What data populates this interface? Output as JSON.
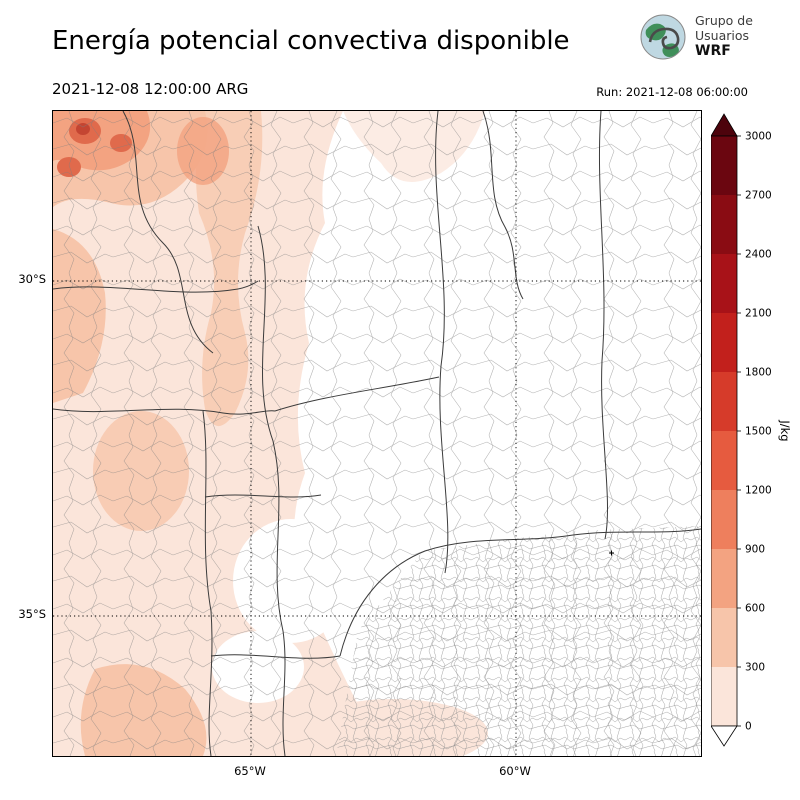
{
  "header": {
    "title": "Energía potencial convectiva disponible",
    "valid_time": "2021-12-08 12:00:00 ARG",
    "run_label": "Run: 2021-12-08 06:00:00",
    "logo": {
      "line1": "Grupo de",
      "line2": "Usuarios",
      "line3": "WRF"
    }
  },
  "map": {
    "lat_labels": [
      "30°S",
      "35°S"
    ],
    "lon_labels": [
      "65°W",
      "60°W"
    ]
  },
  "colorbar": {
    "unit": "J/kg",
    "tick_labels": [
      "3000",
      "2700",
      "2400",
      "2100",
      "1800",
      "1500",
      "1200",
      "900",
      "600",
      "300",
      "0"
    ],
    "segment_colors_top_to_bottom": [
      "#6b0610",
      "#8a0c13",
      "#a81218",
      "#c2201c",
      "#d63b2a",
      "#e65b3f",
      "#ee7f5d",
      "#f3a381",
      "#f7c5aa",
      "#fbe5da"
    ],
    "over_color": "#4d030c",
    "under_color": "#ffffff"
  }
}
